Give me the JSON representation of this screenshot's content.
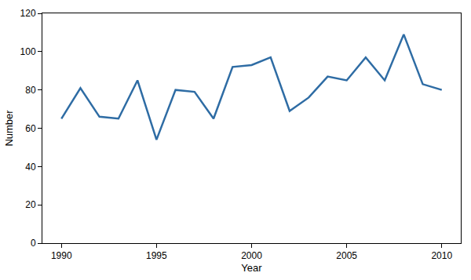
{
  "chart_data": {
    "type": "line",
    "x_label": "Year",
    "y_label": "Number",
    "x": [
      1990,
      1991,
      1992,
      1993,
      1994,
      1995,
      1996,
      1997,
      1998,
      1999,
      2000,
      2001,
      2002,
      2003,
      2004,
      2005,
      2006,
      2007,
      2008,
      2009,
      2010
    ],
    "values": [
      65,
      81,
      66,
      65,
      85,
      54,
      80,
      79,
      65,
      92,
      93,
      97,
      69,
      76,
      87,
      85,
      97,
      85,
      109,
      83,
      80
    ],
    "color": "#2e6ca4",
    "xlim": [
      1989,
      2011
    ],
    "xticks": [
      1990,
      1995,
      2000,
      2005,
      2010
    ],
    "ylim": [
      0,
      120
    ],
    "yticks": [
      0,
      20,
      40,
      60,
      80,
      100,
      120
    ],
    "grid": false
  }
}
